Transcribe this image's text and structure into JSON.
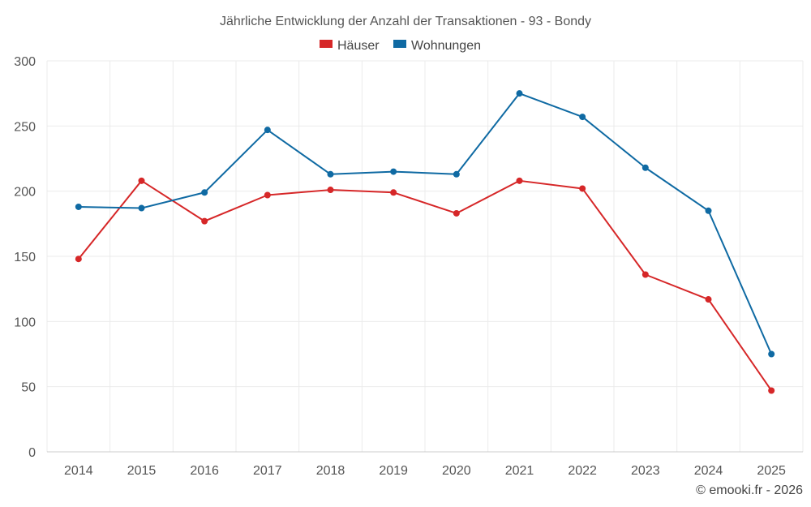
{
  "chart_data": {
    "type": "line",
    "title": "Jährliche Entwicklung der Anzahl der Transaktionen - 93 - Bondy",
    "xlabel": "",
    "ylabel": "",
    "categories": [
      "2014",
      "2015",
      "2016",
      "2017",
      "2018",
      "2019",
      "2020",
      "2021",
      "2022",
      "2023",
      "2024",
      "2025"
    ],
    "ylim": [
      0,
      300
    ],
    "yticks": [
      0,
      50,
      100,
      150,
      200,
      250,
      300
    ],
    "grid": true,
    "legend_position": "top-center",
    "series": [
      {
        "name": "Häuser",
        "color": "#d62728",
        "values": [
          148,
          208,
          177,
          197,
          201,
          199,
          183,
          208,
          202,
          136,
          117,
          47
        ]
      },
      {
        "name": "Wohnungen",
        "color": "#0f6aa3",
        "values": [
          188,
          187,
          199,
          247,
          213,
          215,
          213,
          275,
          257,
          218,
          185,
          75
        ]
      }
    ]
  },
  "credit": "© emooki.fr - 2026"
}
